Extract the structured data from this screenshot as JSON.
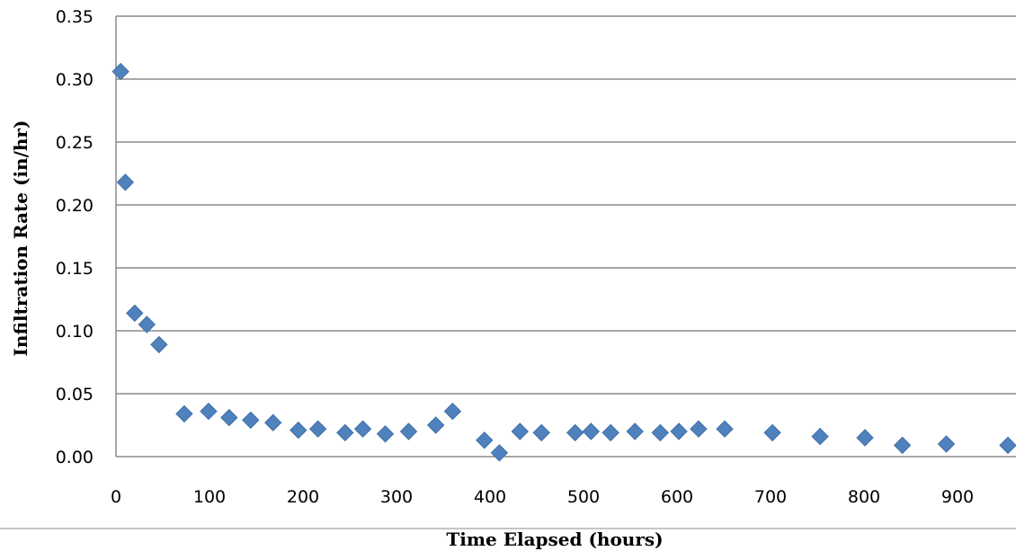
{
  "chart_data": {
    "type": "scatter",
    "xlabel": "Time Elapsed (hours)",
    "ylabel": "Infiltration Rate (in/hr)",
    "xlim": [
      0,
      950
    ],
    "ylim": [
      0,
      0.35
    ],
    "x_ticks": [
      "0",
      "100",
      "200",
      "300",
      "400",
      "500",
      "600",
      "700",
      "800",
      "900"
    ],
    "y_ticks": [
      "0.00",
      "0.05",
      "0.10",
      "0.15",
      "0.20",
      "0.25",
      "0.30",
      "0.35"
    ],
    "grid": true,
    "marker": "diamond",
    "marker_color": "#4f81bd",
    "series": [
      {
        "points": [
          [
            5,
            0.306
          ],
          [
            10,
            0.218
          ],
          [
            20,
            0.114
          ],
          [
            33,
            0.105
          ],
          [
            46,
            0.089
          ],
          [
            73,
            0.034
          ],
          [
            99,
            0.036
          ],
          [
            121,
            0.031
          ],
          [
            144,
            0.029
          ],
          [
            168,
            0.027
          ],
          [
            195,
            0.021
          ],
          [
            216,
            0.022
          ],
          [
            245,
            0.019
          ],
          [
            264,
            0.022
          ],
          [
            288,
            0.018
          ],
          [
            313,
            0.02
          ],
          [
            342,
            0.025
          ],
          [
            360,
            0.036
          ],
          [
            394,
            0.013
          ],
          [
            410,
            0.003
          ],
          [
            432,
            0.02
          ],
          [
            455,
            0.019
          ],
          [
            491,
            0.019
          ],
          [
            508,
            0.02
          ],
          [
            529,
            0.019
          ],
          [
            555,
            0.02
          ],
          [
            582,
            0.019
          ],
          [
            602,
            0.02
          ],
          [
            623,
            0.022
          ],
          [
            651,
            0.022
          ],
          [
            702,
            0.019
          ],
          [
            753,
            0.016
          ],
          [
            801,
            0.015
          ],
          [
            841,
            0.009
          ],
          [
            888,
            0.01
          ],
          [
            960,
            0.009
          ]
        ]
      }
    ]
  }
}
